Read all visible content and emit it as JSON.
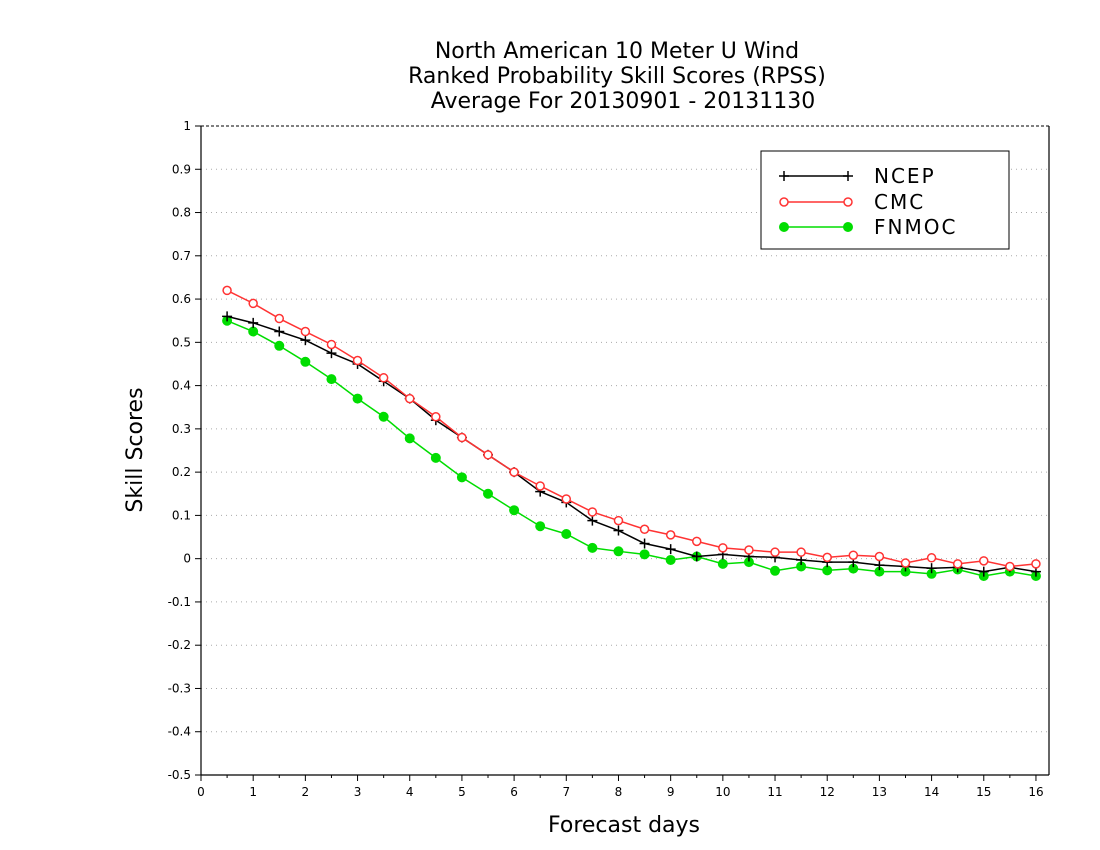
{
  "chart_data": {
    "type": "line",
    "title": [
      "North American 10 Meter U Wind",
      "Ranked Probability Skill Scores (RPSS)",
      "Average For 20130901 - 20131130"
    ],
    "xlabel": "Forecast days",
    "ylabel": "Skill Scores",
    "xlim": [
      0,
      16.25
    ],
    "ylim": [
      -0.5,
      1
    ],
    "xticks": [
      0,
      1,
      2,
      3,
      4,
      5,
      6,
      7,
      8,
      9,
      10,
      11,
      12,
      13,
      14,
      15,
      16
    ],
    "yticks": [
      -0.5,
      -0.4,
      -0.3,
      -0.2,
      -0.1,
      0,
      0.1,
      0.2,
      0.3,
      0.4,
      0.5,
      0.6,
      0.7,
      0.8,
      0.9,
      1
    ],
    "ytick_labels": [
      "-0.5",
      "-0.4",
      "-0.3",
      "-0.2",
      "-0.1",
      "0",
      "0.1",
      "0.2",
      "0.3",
      "0.4",
      "0.5",
      "0.6",
      "0.7",
      "0.8",
      "0.9",
      "1"
    ],
    "grid": "horizontal-dotted",
    "legend_position": "top-right",
    "x": [
      0.5,
      1,
      1.5,
      2,
      2.5,
      3,
      3.5,
      4,
      4.5,
      5,
      5.5,
      6,
      6.5,
      7,
      7.5,
      8,
      8.5,
      9,
      9.5,
      10,
      10.5,
      11,
      11.5,
      12,
      12.5,
      13,
      13.5,
      14,
      14.5,
      15,
      15.5,
      16
    ],
    "series": [
      {
        "name": "NCEP",
        "color": "#000000",
        "marker": "plus",
        "values": [
          0.56,
          0.545,
          0.525,
          0.505,
          0.475,
          0.45,
          0.41,
          0.37,
          0.32,
          0.28,
          0.24,
          0.2,
          0.155,
          0.13,
          0.088,
          0.065,
          0.035,
          0.022,
          0.005,
          0.01,
          0.005,
          0.003,
          -0.003,
          -0.008,
          -0.008,
          -0.015,
          -0.018,
          -0.022,
          -0.02,
          -0.03,
          -0.02,
          -0.03
        ]
      },
      {
        "name": "CMC",
        "color": "#ff3333",
        "marker": "open-circle",
        "values": [
          0.62,
          0.59,
          0.555,
          0.525,
          0.495,
          0.458,
          0.418,
          0.37,
          0.328,
          0.28,
          0.24,
          0.2,
          0.168,
          0.138,
          0.108,
          0.088,
          0.068,
          0.055,
          0.04,
          0.025,
          0.02,
          0.015,
          0.015,
          0.003,
          0.008,
          0.005,
          -0.01,
          0.002,
          -0.012,
          -0.005,
          -0.018,
          -0.012
        ]
      },
      {
        "name": "FNMOC",
        "color": "#00dd00",
        "marker": "filled-circle",
        "values": [
          0.55,
          0.525,
          0.492,
          0.455,
          0.415,
          0.37,
          0.328,
          0.278,
          0.233,
          0.188,
          0.15,
          0.112,
          0.075,
          0.057,
          0.025,
          0.017,
          0.01,
          -0.003,
          0.005,
          -0.012,
          -0.008,
          -0.028,
          -0.018,
          -0.027,
          -0.023,
          -0.03,
          -0.03,
          -0.035,
          -0.025,
          -0.04,
          -0.03,
          -0.04
        ]
      }
    ]
  }
}
